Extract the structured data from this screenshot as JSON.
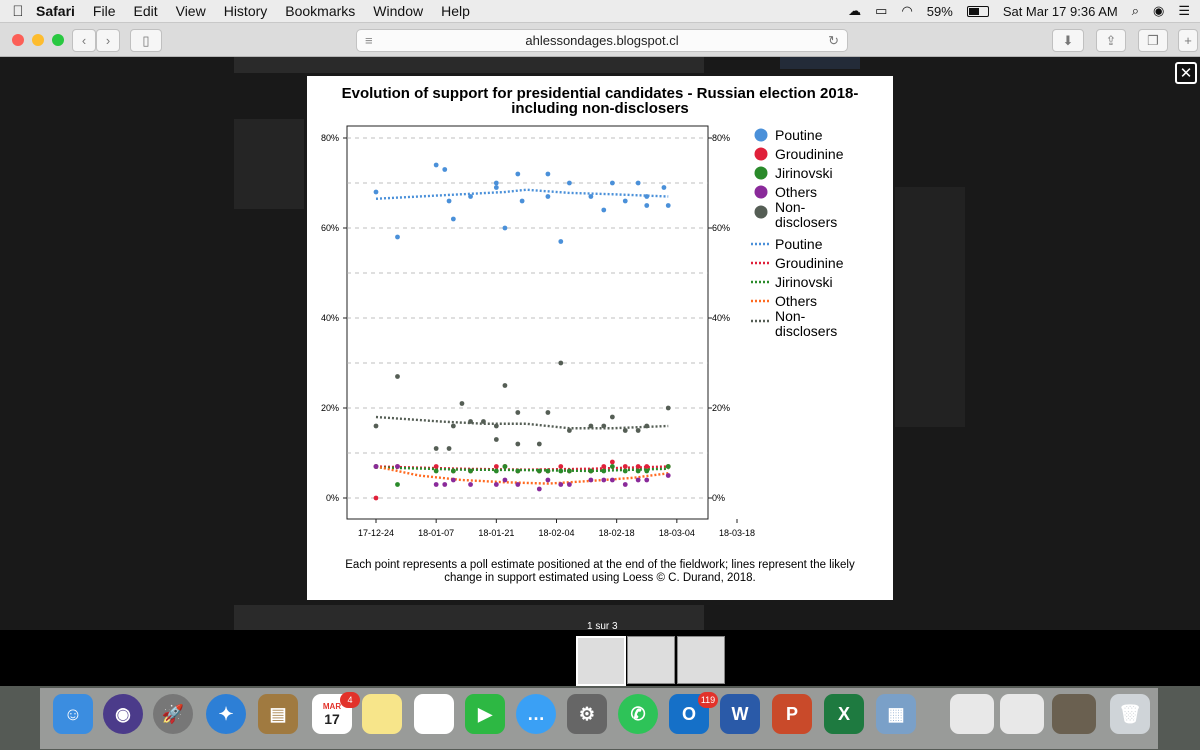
{
  "menubar": {
    "app": "Safari",
    "items": [
      "File",
      "Edit",
      "View",
      "History",
      "Bookmarks",
      "Window",
      "Help"
    ],
    "battery": "59%",
    "clock": "Sat Mar 17  9:36 AM"
  },
  "toolbar": {
    "url": "ahlessondages.blogspot.cl"
  },
  "chart_data": {
    "type": "scatter",
    "title": "Evolution of support for presidential candidates - Russian election 2018-",
    "subtitle": "including non-disclosers",
    "x_ticks": [
      "17-12-24",
      "18-01-07",
      "18-01-21",
      "18-02-04",
      "18-02-18",
      "18-03-04",
      "18-03-18"
    ],
    "y_ticks": [
      "0%",
      "20%",
      "40%",
      "60%",
      "80%"
    ],
    "ylim": [
      0,
      80
    ],
    "grid": "dashed horizontal",
    "legend_position": "right",
    "legend": {
      "points": [
        "Poutine",
        "Groudinine",
        "Jirinovski",
        "Others",
        "Non-disclosers"
      ],
      "lines": [
        "Poutine",
        "Groudinine",
        "Jirinovski",
        "Others",
        "Non-disclosers"
      ]
    },
    "colors": {
      "Poutine": "#4a90d9",
      "Groudinine": "#e0203a",
      "Jirinovski": "#2a8a2a",
      "Others": "#8a2a9a",
      "Non-disclosers": "#555e55",
      "OthersLine": "#ff6a20"
    },
    "caption": "Each point represents a poll estimate positioned at the end of the fieldwork; lines represent the likely change in support estimated using Loess © C. Durand, 2018.",
    "series": [
      {
        "name": "Poutine",
        "points": [
          [
            0,
            68
          ],
          [
            5,
            58
          ],
          [
            14,
            74
          ],
          [
            16,
            73
          ],
          [
            17,
            66
          ],
          [
            18,
            62
          ],
          [
            22,
            67
          ],
          [
            28,
            69
          ],
          [
            28,
            70
          ],
          [
            30,
            60
          ],
          [
            33,
            72
          ],
          [
            34,
            66
          ],
          [
            40,
            72
          ],
          [
            40,
            67
          ],
          [
            43,
            57
          ],
          [
            45,
            70
          ],
          [
            50,
            67
          ],
          [
            53,
            64
          ],
          [
            55,
            70
          ],
          [
            58,
            66
          ],
          [
            61,
            70
          ],
          [
            63,
            65
          ],
          [
            63,
            67
          ],
          [
            67,
            69
          ],
          [
            68,
            65
          ]
        ],
        "trend": [
          [
            0,
            66.5
          ],
          [
            10,
            67
          ],
          [
            20,
            67.5
          ],
          [
            30,
            68
          ],
          [
            35,
            68.5
          ],
          [
            45,
            67.8
          ],
          [
            55,
            67.5
          ],
          [
            68,
            67
          ]
        ]
      },
      {
        "name": "Non-disclosers",
        "points": [
          [
            0,
            16
          ],
          [
            5,
            27
          ],
          [
            14,
            11
          ],
          [
            17,
            11
          ],
          [
            18,
            16
          ],
          [
            20,
            21
          ],
          [
            22,
            17
          ],
          [
            25,
            17
          ],
          [
            28,
            13
          ],
          [
            28,
            16
          ],
          [
            30,
            25
          ],
          [
            33,
            12
          ],
          [
            33,
            19
          ],
          [
            38,
            12
          ],
          [
            40,
            19
          ],
          [
            43,
            30
          ],
          [
            45,
            15
          ],
          [
            50,
            16
          ],
          [
            53,
            16
          ],
          [
            55,
            18
          ],
          [
            58,
            15
          ],
          [
            61,
            15
          ],
          [
            63,
            16
          ],
          [
            68,
            20
          ]
        ],
        "trend": [
          [
            0,
            18
          ],
          [
            15,
            17
          ],
          [
            25,
            16.5
          ],
          [
            35,
            16.5
          ],
          [
            45,
            15.5
          ],
          [
            55,
            15.5
          ],
          [
            68,
            16
          ]
        ]
      },
      {
        "name": "Groudinine",
        "points": [
          [
            0,
            0
          ],
          [
            0,
            7
          ],
          [
            5,
            7
          ],
          [
            14,
            7
          ],
          [
            18,
            6
          ],
          [
            22,
            6
          ],
          [
            28,
            7
          ],
          [
            30,
            7
          ],
          [
            33,
            6
          ],
          [
            38,
            6
          ],
          [
            40,
            6
          ],
          [
            43,
            7
          ],
          [
            45,
            6
          ],
          [
            50,
            6
          ],
          [
            53,
            7
          ],
          [
            55,
            8
          ],
          [
            58,
            7
          ],
          [
            61,
            7
          ],
          [
            63,
            7
          ],
          [
            68,
            7
          ]
        ],
        "trend": [
          [
            0,
            7
          ],
          [
            20,
            6.5
          ],
          [
            35,
            6.3
          ],
          [
            50,
            6.5
          ],
          [
            68,
            7
          ]
        ]
      },
      {
        "name": "Jirinovski",
        "points": [
          [
            0,
            7
          ],
          [
            5,
            3
          ],
          [
            14,
            6
          ],
          [
            18,
            6
          ],
          [
            22,
            6
          ],
          [
            28,
            6
          ],
          [
            30,
            7
          ],
          [
            33,
            6
          ],
          [
            38,
            6
          ],
          [
            40,
            6
          ],
          [
            43,
            6
          ],
          [
            45,
            6
          ],
          [
            50,
            6
          ],
          [
            53,
            6
          ],
          [
            55,
            7
          ],
          [
            58,
            6
          ],
          [
            61,
            6
          ],
          [
            63,
            6
          ],
          [
            68,
            7
          ]
        ],
        "trend": [
          [
            0,
            6.8
          ],
          [
            20,
            6.3
          ],
          [
            35,
            6.2
          ],
          [
            50,
            6.0
          ],
          [
            68,
            6.5
          ]
        ]
      },
      {
        "name": "Others",
        "points": [
          [
            0,
            7
          ],
          [
            5,
            7
          ],
          [
            14,
            3
          ],
          [
            16,
            3
          ],
          [
            18,
            4
          ],
          [
            22,
            3
          ],
          [
            28,
            3
          ],
          [
            30,
            4
          ],
          [
            33,
            3
          ],
          [
            38,
            2
          ],
          [
            40,
            4
          ],
          [
            43,
            3
          ],
          [
            45,
            3
          ],
          [
            50,
            4
          ],
          [
            53,
            4
          ],
          [
            55,
            4
          ],
          [
            58,
            3
          ],
          [
            61,
            4
          ],
          [
            63,
            4
          ],
          [
            68,
            5
          ]
        ],
        "trend": [
          [
            0,
            7
          ],
          [
            10,
            5
          ],
          [
            20,
            4
          ],
          [
            30,
            3.5
          ],
          [
            40,
            3.2
          ],
          [
            50,
            3.8
          ],
          [
            60,
            4.5
          ],
          [
            68,
            5.5
          ]
        ]
      }
    ]
  },
  "thumbnails": {
    "counter": "1 sur 3",
    "count": 3
  },
  "dock": {
    "calendar_month": "MAR",
    "calendar_day": "17",
    "calendar_badge": "4",
    "outlook_badge": "119"
  }
}
